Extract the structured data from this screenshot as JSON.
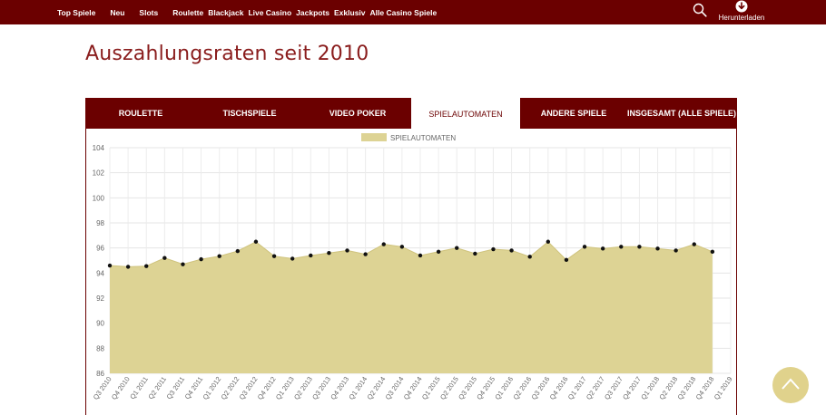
{
  "nav": {
    "items": [
      "Top Spiele",
      "Neu",
      "Slots",
      "Roulette",
      "Blackjack",
      "Live Casino",
      "Jackpots",
      "Exklusiv",
      "Alle Casino Spiele"
    ],
    "download_label": "Herunterladen"
  },
  "page": {
    "title": "Auszahlungsraten seit 2010"
  },
  "tabs": [
    "ROULETTE",
    "TISCHSPIELE",
    "VIDEO POKER",
    "SPIELAUTOMATEN",
    "ANDERE SPIELE",
    "INSGESAMT (ALLE SPIELE)"
  ],
  "active_tab": 3,
  "colors": {
    "brand": "#6b0000",
    "title": "#8a1d1d",
    "area": "#ddd394",
    "scroll_button": "#e0d28c"
  },
  "icons": {
    "search": "search-icon",
    "download": "download-icon",
    "scroll_top": "chevron-up-icon"
  },
  "chart_data": {
    "type": "area",
    "legend": "top-center",
    "grid": true,
    "ylim": [
      86,
      104
    ],
    "yticks": [
      86,
      88,
      90,
      92,
      94,
      96,
      98,
      100,
      102,
      104
    ],
    "x": [
      "Q3 2010",
      "Q4 2010",
      "Q1 2011",
      "Q2 2011",
      "Q3 2011",
      "Q4 2011",
      "Q1 2012",
      "Q2 2012",
      "Q3 2012",
      "Q4 2012",
      "Q1 2013",
      "Q2 2013",
      "Q3 2013",
      "Q4 2013",
      "Q1 2014",
      "Q2 2014",
      "Q3 2014",
      "Q4 2014",
      "Q1 2015",
      "Q2 2015",
      "Q3 2015",
      "Q4 2015",
      "Q1 2016",
      "Q2 2016",
      "Q3 2016",
      "Q4 2016",
      "Q1 2017",
      "Q2 2017",
      "Q3 2017",
      "Q4 2017",
      "Q1 2018",
      "Q2 2018",
      "Q3 2018",
      "Q4 2018",
      "Q1 2019"
    ],
    "series": [
      {
        "name": "SPIELAUTOMATEN",
        "values": [
          94.6,
          94.5,
          94.55,
          95.2,
          94.7,
          95.1,
          95.35,
          95.75,
          96.5,
          95.35,
          95.15,
          95.4,
          95.6,
          95.8,
          95.5,
          96.3,
          96.1,
          95.4,
          95.7,
          96.0,
          95.55,
          95.9,
          95.8,
          95.3,
          96.5,
          95.05,
          96.1,
          95.95,
          96.1,
          96.1,
          95.95,
          95.8,
          96.3,
          95.7,
          null
        ]
      }
    ]
  }
}
